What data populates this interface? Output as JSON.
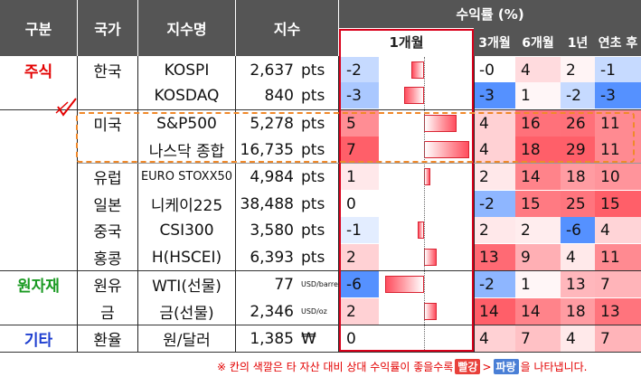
{
  "header": {
    "category": "구분",
    "country": "국가",
    "index_name": "지수명",
    "index": "지수",
    "returns_group": "수익률 (%)",
    "col_1m": "1개월",
    "col_3m": "3개월",
    "col_6m": "6개월",
    "col_1y": "1년",
    "col_ytd": "연초 후"
  },
  "rows": [
    {
      "category": "주식",
      "country": "한국",
      "name": "KOSPI",
      "value": "2,637",
      "unit": "pts",
      "r1m": "-2",
      "r3m": "-0",
      "r6m": "4",
      "r1y": "2",
      "rytd": "-1"
    },
    {
      "category": "",
      "country": "",
      "name": "KOSDAQ",
      "value": "840",
      "unit": "pts",
      "r1m": "-3",
      "r3m": "-3",
      "r6m": "1",
      "r1y": "-2",
      "rytd": "-3"
    },
    {
      "category": "",
      "country": "미국",
      "name": "S&P500",
      "value": "5,278",
      "unit": "pts",
      "r1m": "5",
      "r3m": "4",
      "r6m": "16",
      "r1y": "26",
      "rytd": "11"
    },
    {
      "category": "",
      "country": "",
      "name": "나스닥 종합",
      "value": "16,735",
      "unit": "pts",
      "r1m": "7",
      "r3m": "4",
      "r6m": "18",
      "r1y": "29",
      "rytd": "11"
    },
    {
      "category": "",
      "country": "유럽",
      "name": "EURO STOXX50",
      "value": "4,984",
      "unit": "pts",
      "r1m": "1",
      "r3m": "2",
      "r6m": "14",
      "r1y": "18",
      "rytd": "10"
    },
    {
      "category": "",
      "country": "일본",
      "name": "니케이225",
      "value": "38,488",
      "unit": "pts",
      "r1m": "0",
      "r3m": "-2",
      "r6m": "15",
      "r1y": "25",
      "rytd": "15"
    },
    {
      "category": "",
      "country": "중국",
      "name": "CSI300",
      "value": "3,580",
      "unit": "pts",
      "r1m": "-1",
      "r3m": "2",
      "r6m": "2",
      "r1y": "-6",
      "rytd": "4"
    },
    {
      "category": "",
      "country": "홍콩",
      "name": "H(HSCEI)",
      "value": "6,393",
      "unit": "pts",
      "r1m": "2",
      "r3m": "13",
      "r6m": "9",
      "r1y": "4",
      "rytd": "11"
    },
    {
      "category": "원자재",
      "country": "원유",
      "name": "WTI(선물)",
      "value": "77",
      "unit": "USD/barrel",
      "r1m": "-6",
      "r3m": "-2",
      "r6m": "1",
      "r1y": "13",
      "rytd": "7"
    },
    {
      "category": "",
      "country": "금",
      "name": "금(선물)",
      "value": "2,346",
      "unit": "USD/oz",
      "r1m": "2",
      "r3m": "14",
      "r6m": "14",
      "r1y": "18",
      "rytd": "13"
    },
    {
      "category": "기타",
      "country": "환율",
      "name": "원/달러",
      "value": "1,385",
      "unit": "₩",
      "r1m": "0",
      "r3m": "4",
      "r6m": "7",
      "r1y": "4",
      "rytd": "7"
    }
  ],
  "footer": {
    "prefix": "※ 칸의 색깔은 타 자산 대비 상대 수익률이 좋을수록",
    "red_word": "빨강",
    "gt": ">",
    "blue_word": "파랑",
    "suffix": "을 나타냅니다."
  }
}
